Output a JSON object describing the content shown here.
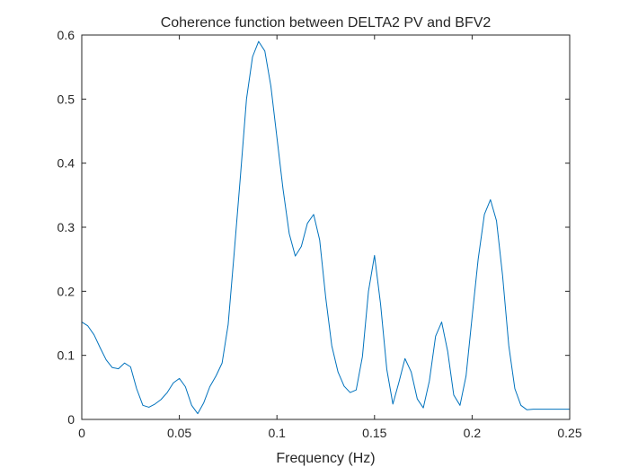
{
  "colors": {
    "background": "#ffffff",
    "axes": "#262626",
    "series": "#0072BD"
  },
  "chart_data": {
    "type": "line",
    "title": "Coherence function between DELTA2 PV and BFV2",
    "xlabel": "Frequency (Hz)",
    "ylabel": "",
    "xlim": [
      0,
      0.25
    ],
    "ylim": [
      0,
      0.6
    ],
    "grid": false,
    "box": true,
    "xticks": [
      0,
      0.05,
      0.1,
      0.15,
      0.2,
      0.25
    ],
    "xtick_labels": [
      "0",
      "0.05",
      "0.1",
      "0.15",
      "0.2",
      "0.25"
    ],
    "yticks": [
      0,
      0.1,
      0.2,
      0.3,
      0.4,
      0.5,
      0.6
    ],
    "ytick_labels": [
      "0",
      "0.1",
      "0.2",
      "0.3",
      "0.4",
      "0.5",
      "0.6"
    ],
    "series": [
      {
        "x": [
          0,
          0.0031,
          0.0063,
          0.0094,
          0.0125,
          0.0156,
          0.0188,
          0.0219,
          0.025,
          0.0281,
          0.0313,
          0.0344,
          0.0375,
          0.0406,
          0.0438,
          0.0469,
          0.05,
          0.0531,
          0.0563,
          0.0594,
          0.0625,
          0.0656,
          0.0688,
          0.0719,
          0.075,
          0.0781,
          0.0813,
          0.0844,
          0.0875,
          0.0906,
          0.0938,
          0.0969,
          0.1,
          0.1031,
          0.1063,
          0.1094,
          0.1125,
          0.1156,
          0.1188,
          0.1219,
          0.125,
          0.1281,
          0.1313,
          0.1344,
          0.1375,
          0.1406,
          0.1438,
          0.1469,
          0.15,
          0.1531,
          0.1563,
          0.1594,
          0.1625,
          0.1656,
          0.1688,
          0.1719,
          0.175,
          0.1781,
          0.1813,
          0.1844,
          0.1875,
          0.1906,
          0.1938,
          0.1969,
          0.2,
          0.2031,
          0.2063,
          0.2094,
          0.2125,
          0.2156,
          0.2188,
          0.2219,
          0.225,
          0.2281,
          0.2313,
          0.2344,
          0.2375,
          0.2406,
          0.2438,
          0.2469,
          0.25
        ],
        "y": [
          0.152,
          0.146,
          0.132,
          0.112,
          0.093,
          0.081,
          0.079,
          0.088,
          0.082,
          0.048,
          0.022,
          0.019,
          0.024,
          0.031,
          0.042,
          0.057,
          0.064,
          0.051,
          0.022,
          0.009,
          0.026,
          0.051,
          0.068,
          0.088,
          0.148,
          0.26,
          0.38,
          0.5,
          0.566,
          0.59,
          0.575,
          0.52,
          0.44,
          0.36,
          0.29,
          0.255,
          0.27,
          0.306,
          0.32,
          0.28,
          0.19,
          0.115,
          0.074,
          0.052,
          0.042,
          0.046,
          0.098,
          0.2,
          0.256,
          0.18,
          0.078,
          0.024,
          0.058,
          0.095,
          0.074,
          0.032,
          0.018,
          0.06,
          0.13,
          0.152,
          0.106,
          0.038,
          0.022,
          0.068,
          0.16,
          0.25,
          0.32,
          0.343,
          0.31,
          0.225,
          0.115,
          0.048,
          0.022,
          0.015,
          0.016,
          0.016,
          0.016,
          0.016,
          0.016,
          0.016,
          0.016
        ]
      }
    ]
  }
}
